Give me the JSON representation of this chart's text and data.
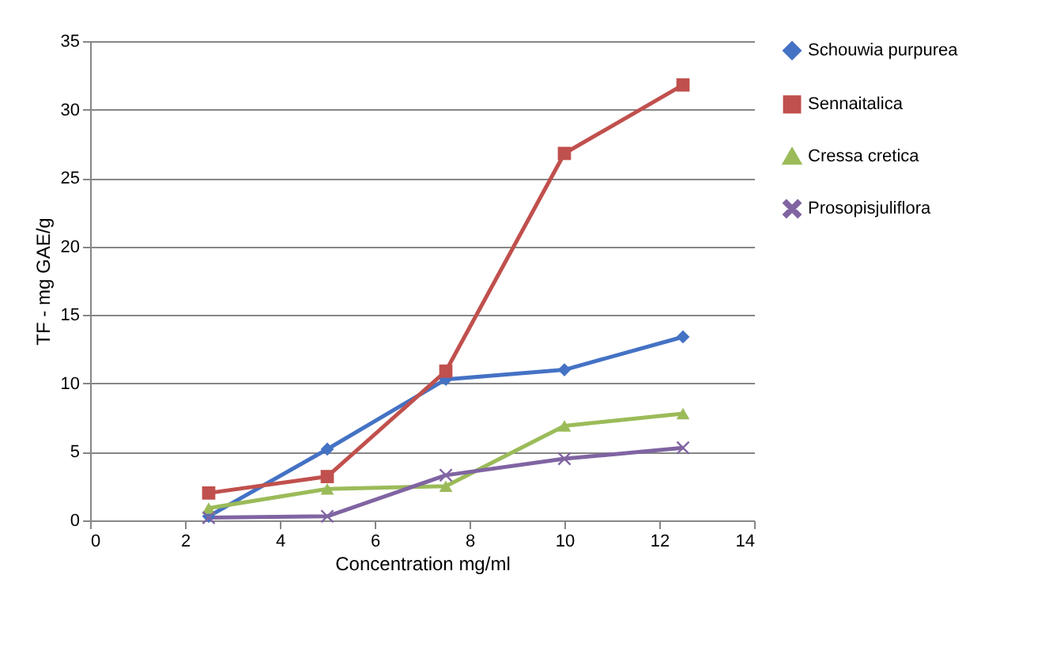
{
  "chart_data": {
    "type": "line",
    "xlabel": "Concentration mg/ml",
    "ylabel": "TF - mg GAE/g",
    "x": [
      2.5,
      5,
      7.5,
      10,
      12.5
    ],
    "series": [
      {
        "name": "Schouwia purpurea",
        "color": "#4472c4",
        "marker": "diamond",
        "values": [
          0.3,
          5.2,
          10.3,
          11,
          13.4
        ]
      },
      {
        "name": "Sennaitalica",
        "color": "#c0504d",
        "marker": "square",
        "values": [
          2,
          3.2,
          10.9,
          26.8,
          31.8
        ]
      },
      {
        "name": "Cressa cretica",
        "color": "#9bbb59",
        "marker": "triangle",
        "values": [
          0.9,
          2.3,
          2.5,
          6.9,
          7.8
        ]
      },
      {
        "name": "Prosopisjuliflora",
        "color": "#8064a2",
        "marker": "cross",
        "values": [
          0.2,
          0.3,
          3.3,
          4.5,
          5.3
        ]
      }
    ],
    "xlim": [
      0,
      14
    ],
    "xticks": [
      0,
      2,
      4,
      6,
      8,
      10,
      12,
      14
    ],
    "ylim": [
      0,
      35
    ],
    "yticks": [
      0,
      5,
      10,
      15,
      20,
      25,
      30,
      35
    ],
    "grid": "y",
    "legend": "right"
  }
}
